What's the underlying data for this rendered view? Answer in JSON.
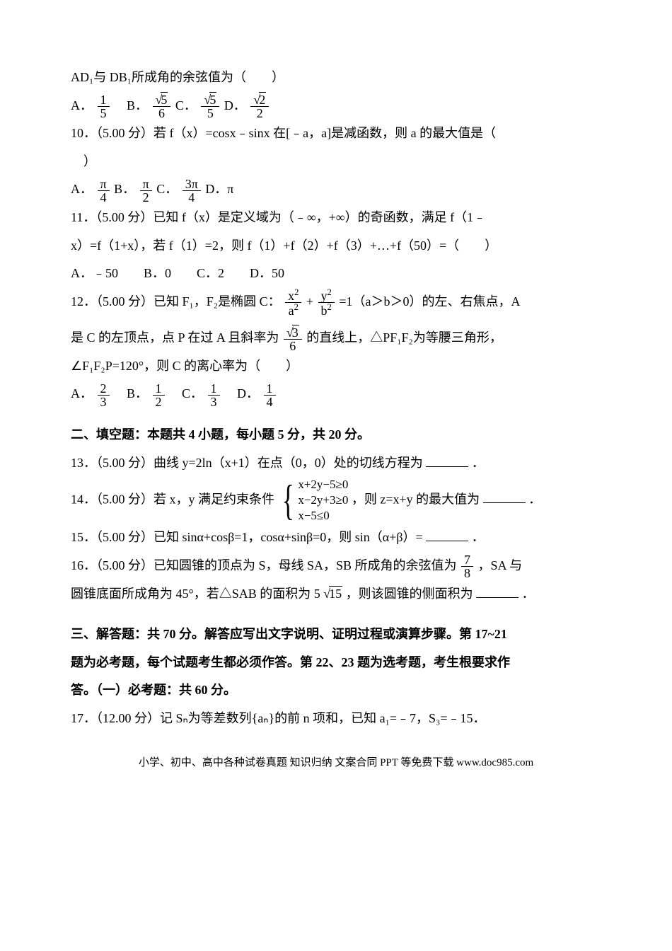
{
  "q9_tail": {
    "stem": "AD₁与 DB₁所成角的余弦值为（　　）",
    "optA_label": "A．",
    "optA_num": "1",
    "optA_den": "5",
    "optB_label": "　B．",
    "optB_num_rad": "5",
    "optB_den": "6",
    "optC_label": " C．",
    "optC_num_rad": "5",
    "optC_den": "5",
    "optD_label": " D．",
    "optD_num_rad": "2",
    "optD_den": "2"
  },
  "q10": {
    "stem_a": "10．（5.00 分）若 f（x）=cosx﹣sinx 在[﹣a，a]是减函数，则 a 的最大值是（",
    "stem_b": "　）",
    "optA_label": "A．",
    "optA_num": "π",
    "optA_den": "4",
    "optB_label": " B．",
    "optB_num": "π",
    "optB_den": "2",
    "optC_label": " C．",
    "optC_num": "3π",
    "optC_den": "4",
    "optD": "D．π"
  },
  "q11": {
    "line1": "11．（5.00 分）已知 f（x）是定义域为（﹣∞，+∞）的奇函数，满足 f（1﹣",
    "line2": "x）=f（1+x），若 f（1）=2，则 f（1）+f（2）+f（3）+…+f（50）=（　　）",
    "opts": "A．﹣50　　B．0　　C．2　　D．50"
  },
  "q12": {
    "pre": "12．（5.00 分）已知 F₁，F₂是椭圆 C：",
    "num1": "x",
    "exp1": "2",
    "den1_base": "a",
    "den1_exp": "2",
    "plus": "+",
    "num2": "y",
    "exp2": "2",
    "den2_base": "b",
    "den2_exp": "2",
    "post": "=1（a＞b＞0）的左、右焦点，A",
    "line2a": "是 C 的左顶点，点 P 在过 A 且斜率为",
    "slope_num_rad": "3",
    "slope_den": "6",
    "line2b": "的直线上，△PF₁F₂为等腰三角形，",
    "line3": "∠F₁F₂P=120°，则 C 的离心率为（　　）",
    "optA_label": "A．",
    "optA_num": "2",
    "optA_den": "3",
    "optB_label": "　B．",
    "optB_num": "1",
    "optB_den": "2",
    "optC_label": "　C．",
    "optC_num": "1",
    "optC_den": "3",
    "optD_label": "　D．",
    "optD_num": "1",
    "optD_den": "4"
  },
  "section2": {
    "title": "二、填空题：本题共 4 小题，每小题 5 分，共 20 分。"
  },
  "q13": {
    "text": "13．（5.00 分）曲线 y=2ln（x+1）在点（0，0）处的切线方程为",
    "suffix": "．"
  },
  "q14": {
    "pre": "14．（5.00 分）若 x，y 满足约束条件",
    "c1": "x+2y−5≥0",
    "c2": "x−2y+3≥0",
    "c3": "x−5≤0",
    "mid": "，则 z=x+y 的最大值为",
    "suffix": "．"
  },
  "q15": {
    "text": "15．（5.00 分）已知 sinα+cosβ=1，cosα+sinβ=0，则 sin（α+β）=",
    "suffix": "．"
  },
  "q16": {
    "line1a": "16．（5.00 分）已知圆锥的顶点为 S，母线 SA，SB 所成角的余弦值为",
    "cos_num": "7",
    "cos_den": "8",
    "line1b": "，SA 与",
    "line2a": "圆锥底面所成角为 45°，若△SAB 的面积为 5",
    "rad": "15",
    "line2b": "，则该圆锥的侧面积为",
    "suffix": "．"
  },
  "section3": {
    "l1": "三、解答题：共 70 分。解答应写出文字说明、证明过程或演算步骤。第 17~21",
    "l2": "题为必考题，每个试题考生都必须作答。第 22、23 题为选考题，考生根要求作",
    "l3": "答。（一）必考题：共 60 分。"
  },
  "q17": {
    "text": "17．（12.00 分）记 Sₙ为等差数列{aₙ}的前 n 项和，已知 a₁=﹣7，S₃=﹣15．"
  },
  "footer": {
    "text": "小学、初中、高中各种试卷真题 知识归纳 文案合同 PPT 等免费下载 www.doc985.com"
  }
}
